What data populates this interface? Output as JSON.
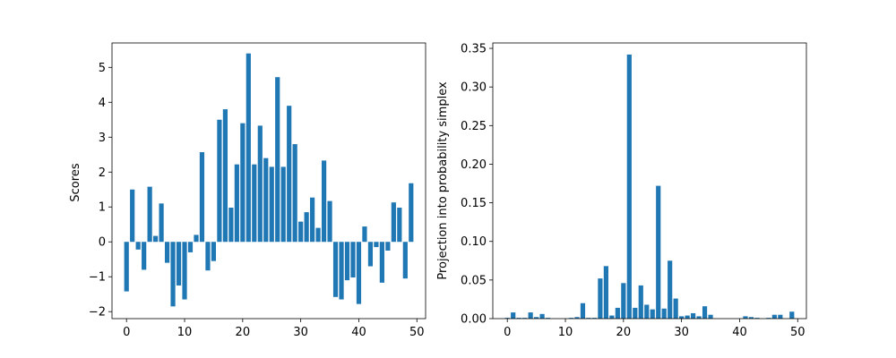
{
  "chart_data": [
    {
      "type": "bar",
      "title": "",
      "xlabel": "",
      "ylabel": "Scores",
      "color": "#1f77b4",
      "grid": false,
      "xlim": [
        -2.5,
        51.5
      ],
      "ylim": [
        -2.2,
        5.7
      ],
      "xticks": [
        0,
        10,
        20,
        30,
        40,
        50
      ],
      "yticks": [
        -2,
        -1,
        0,
        1,
        2,
        3,
        4,
        5
      ],
      "ytick_labels": [
        "−2",
        "−1",
        "0",
        "1",
        "2",
        "3",
        "4",
        "5"
      ],
      "x": [
        0,
        1,
        2,
        3,
        4,
        5,
        6,
        7,
        8,
        9,
        10,
        11,
        12,
        13,
        14,
        15,
        16,
        17,
        18,
        19,
        20,
        21,
        22,
        23,
        24,
        25,
        26,
        27,
        28,
        29,
        30,
        31,
        32,
        33,
        34,
        35,
        36,
        37,
        38,
        39,
        40,
        41,
        42,
        43,
        44,
        45,
        46,
        47,
        48,
        49
      ],
      "values": [
        -1.42,
        1.5,
        -0.22,
        -0.8,
        1.58,
        0.17,
        1.1,
        -0.6,
        -1.85,
        -1.25,
        -1.65,
        -0.3,
        0.2,
        2.57,
        -0.82,
        -0.55,
        3.5,
        3.8,
        0.98,
        2.22,
        3.4,
        5.4,
        2.22,
        3.33,
        2.4,
        2.15,
        4.72,
        2.15,
        3.9,
        2.8,
        0.58,
        0.85,
        1.27,
        0.4,
        2.33,
        1.17,
        -1.58,
        -1.65,
        -1.1,
        -1.02,
        -1.78,
        0.44,
        -0.7,
        -0.15,
        -1.17,
        -0.25,
        1.13,
        0.98,
        -1.05,
        1.68
      ]
    },
    {
      "type": "bar",
      "title": "",
      "xlabel": "",
      "ylabel": "Projection into probability simplex",
      "color": "#1f77b4",
      "grid": false,
      "xlim": [
        -2.5,
        51.5
      ],
      "ylim": [
        0,
        0.357
      ],
      "xticks": [
        0,
        10,
        20,
        30,
        40,
        50
      ],
      "yticks": [
        0.0,
        0.05,
        0.1,
        0.15,
        0.2,
        0.25,
        0.3,
        0.35
      ],
      "ytick_labels": [
        "0.00",
        "0.05",
        "0.10",
        "0.15",
        "0.20",
        "0.25",
        "0.30",
        "0.35"
      ],
      "x": [
        0,
        1,
        2,
        3,
        4,
        5,
        6,
        7,
        8,
        9,
        10,
        11,
        12,
        13,
        14,
        15,
        16,
        17,
        18,
        19,
        20,
        21,
        22,
        23,
        24,
        25,
        26,
        27,
        28,
        29,
        30,
        31,
        32,
        33,
        34,
        35,
        36,
        37,
        38,
        39,
        40,
        41,
        42,
        43,
        44,
        45,
        46,
        47,
        48,
        49
      ],
      "values": [
        0.001,
        0.008,
        0.001,
        0.001,
        0.008,
        0.002,
        0.006,
        0.001,
        0.0,
        0.0,
        0.0,
        0.001,
        0.002,
        0.02,
        0.001,
        0.001,
        0.052,
        0.068,
        0.004,
        0.014,
        0.046,
        0.342,
        0.014,
        0.043,
        0.018,
        0.012,
        0.172,
        0.013,
        0.075,
        0.026,
        0.003,
        0.004,
        0.007,
        0.003,
        0.016,
        0.005,
        0.0,
        0.0,
        0.0,
        0.0,
        0.0,
        0.003,
        0.002,
        0.001,
        0.0,
        0.001,
        0.005,
        0.005,
        0.0,
        0.009
      ]
    }
  ]
}
